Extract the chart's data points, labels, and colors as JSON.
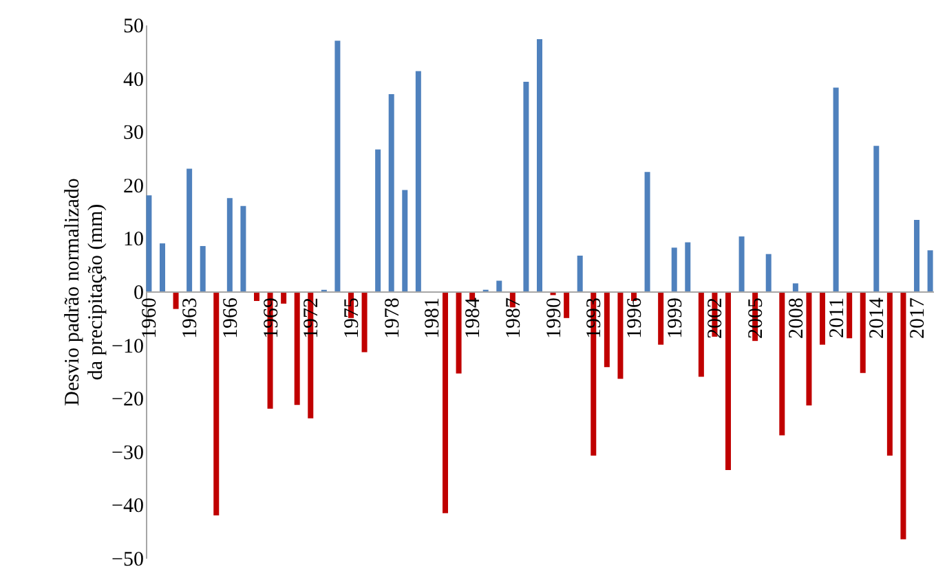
{
  "chart_data": {
    "type": "bar",
    "ylabel": "Desvio padrão normalizado da precipitação (mm)",
    "categories": [
      "1960",
      null,
      null,
      "1963",
      null,
      null,
      "1966",
      null,
      null,
      "1969",
      null,
      null,
      "1972",
      null,
      null,
      "1975",
      null,
      null,
      "1978",
      null,
      null,
      "1981",
      null,
      null,
      "1984",
      null,
      null,
      "1987",
      null,
      null,
      "1990",
      null,
      null,
      "1993",
      null,
      null,
      "1996",
      null,
      null,
      "1999",
      null,
      null,
      "2002",
      null,
      null,
      "2005",
      null,
      null,
      "2008",
      null,
      null,
      "2011",
      null,
      null,
      "2014",
      null,
      null,
      "2017",
      null
    ],
    "values": [
      18,
      9,
      -3.3,
      23,
      8.5,
      -42,
      17.5,
      16,
      -1.8,
      -22,
      -2.3,
      -21.3,
      -23.8,
      0.3,
      47,
      -5,
      -11.4,
      26.6,
      37,
      19,
      41.3,
      0,
      -41.6,
      -15.4,
      -1.8,
      0.3,
      2,
      -3,
      39.3,
      47.3,
      -0.7,
      -5,
      6.7,
      -30.8,
      -14.2,
      -16.4,
      -1.8,
      22.4,
      -10,
      8.2,
      9.2,
      -16,
      -8.5,
      -33.5,
      10.3,
      -9.3,
      7,
      -27,
      1.5,
      -21.4,
      -10,
      38.2,
      -8.8,
      -15.3,
      27.3,
      -30.8,
      -46.5,
      13.4,
      7.7
    ],
    "colors": [
      "#4f81bd",
      "#4f81bd",
      "#c00000",
      "#4f81bd",
      "#4f81bd",
      "#c00000",
      "#4f81bd",
      "#4f81bd",
      "#c00000",
      "#c00000",
      "#c00000",
      "#c00000",
      "#c00000",
      "#4f81bd",
      "#4f81bd",
      "#c00000",
      "#c00000",
      "#4f81bd",
      "#4f81bd",
      "#4f81bd",
      "#4f81bd",
      "#4f81bd",
      "#c00000",
      "#c00000",
      "#c00000",
      "#4f81bd",
      "#4f81bd",
      "#c00000",
      "#4f81bd",
      "#4f81bd",
      "#c00000",
      "#c00000",
      "#4f81bd",
      "#c00000",
      "#c00000",
      "#c00000",
      "#c00000",
      "#4f81bd",
      "#c00000",
      "#4f81bd",
      "#4f81bd",
      "#c00000",
      "#c00000",
      "#c00000",
      "#4f81bd",
      "#c00000",
      "#4f81bd",
      "#c00000",
      "#4f81bd",
      "#c00000",
      "#c00000",
      "#4f81bd",
      "#c00000",
      "#c00000",
      "#4f81bd",
      "#c00000",
      "#c00000",
      "#4f81bd",
      "#4f81bd"
    ],
    "ylim": [
      -50,
      50
    ],
    "yticks": [
      -50,
      -40,
      -30,
      -20,
      -10,
      0,
      10,
      20,
      30,
      40,
      50
    ],
    "grid": false
  }
}
